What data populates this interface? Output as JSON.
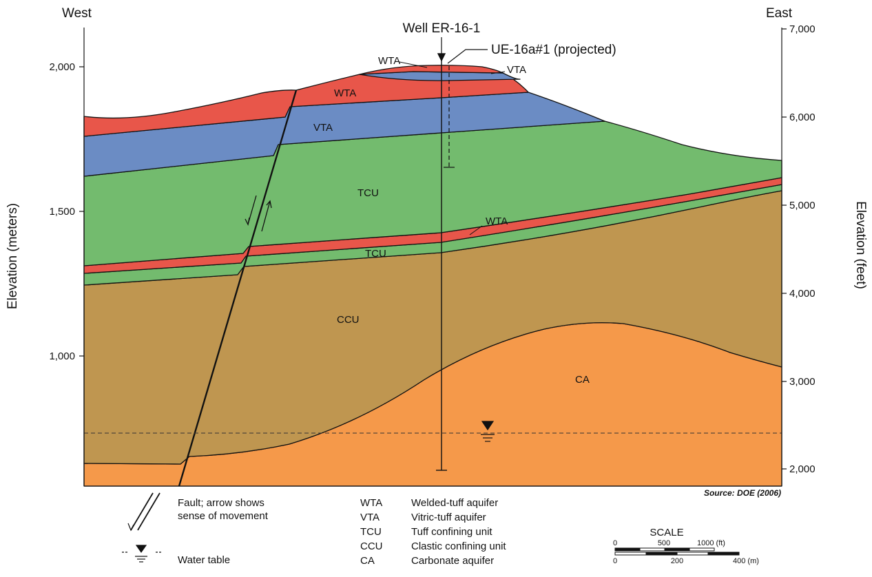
{
  "header": {
    "west": "West",
    "east": "East",
    "well": "Well ER-16-1",
    "projected": "UE-16a#1 (projected)"
  },
  "axes": {
    "left_title": "Elevation (meters)",
    "right_title": "Elevation (feet)",
    "left_ticks": [
      "2,000",
      "1,500",
      "1,000"
    ],
    "right_ticks": [
      "7,000",
      "6,000",
      "5,000",
      "4,000",
      "3,000",
      "2,000"
    ]
  },
  "units": {
    "wta_top": "WTA",
    "vta_top": "VTA",
    "wta": "WTA",
    "vta": "VTA",
    "tcu": "TCU",
    "wta_lower": "WTA",
    "tcu_lower": "TCU",
    "ccu": "CCU",
    "ca": "CA"
  },
  "colors": {
    "wta": "#e8564a",
    "vta": "#6b8cc4",
    "tcu": "#73bb6e",
    "ccu": "#bf9650",
    "ca": "#f5994a"
  },
  "source": "Source:  DOE (2006)",
  "legend": {
    "fault_line1": "Fault; arrow shows",
    "fault_line2": "sense of movement",
    "water_table": "Water table",
    "entries": [
      {
        "code": "WTA",
        "desc": "Welded-tuff aquifer"
      },
      {
        "code": "VTA",
        "desc": "Vitric-tuff aquifer"
      },
      {
        "code": "TCU",
        "desc": "Tuff confining unit"
      },
      {
        "code": "CCU",
        "desc": "Clastic confining unit"
      },
      {
        "code": "CA",
        "desc": "Carbonate aquifer"
      }
    ]
  },
  "scale": {
    "title": "SCALE",
    "ft_labels": [
      "0",
      "500",
      "1000 (ft)"
    ],
    "m_labels": [
      "0",
      "200",
      "400 (m)"
    ]
  }
}
